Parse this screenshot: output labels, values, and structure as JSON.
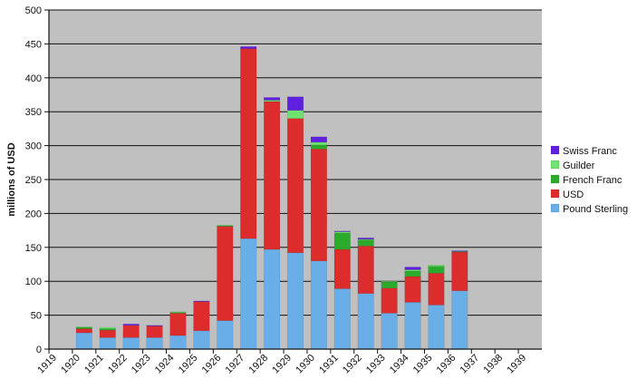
{
  "chart_data": {
    "type": "bar",
    "stacked": true,
    "title": "",
    "xlabel": "",
    "ylabel": "millions of USD",
    "ylim": [
      0,
      500
    ],
    "yticks": [
      0,
      50,
      100,
      150,
      200,
      250,
      300,
      350,
      400,
      450,
      500
    ],
    "grid": true,
    "legend_position": "right",
    "background_color": "#c0c0c0",
    "categories": [
      "1919",
      "1920",
      "1921",
      "1922",
      "1923",
      "1924",
      "1925",
      "1926",
      "1927",
      "1928",
      "1929",
      "1930",
      "1931",
      "1932",
      "1933",
      "1934",
      "1935",
      "1936",
      "1937",
      "1938",
      "1939"
    ],
    "series": [
      {
        "name": "Pound Sterling",
        "color": "#6aaee8",
        "values": [
          0,
          24,
          17,
          17,
          17,
          20,
          27,
          42,
          163,
          147,
          142,
          130,
          89,
          82,
          53,
          69,
          65,
          86,
          0,
          0,
          0
        ]
      },
      {
        "name": "USD",
        "color": "#dd2c2c",
        "values": [
          0,
          6,
          11,
          18,
          17,
          33,
          43,
          139,
          280,
          218,
          198,
          165,
          58,
          70,
          37,
          38,
          47,
          57,
          0,
          0,
          0
        ]
      },
      {
        "name": "French Franc",
        "color": "#2caa2c",
        "values": [
          0,
          2,
          2,
          0,
          0,
          1,
          0,
          1,
          0,
          0,
          0,
          6,
          24,
          9,
          9,
          8,
          10,
          1,
          0,
          0,
          0
        ]
      },
      {
        "name": "Guilder",
        "color": "#6fe26f",
        "values": [
          0,
          1,
          2,
          0,
          0,
          1,
          0,
          1,
          0,
          2,
          12,
          4,
          2,
          1,
          1,
          2,
          2,
          0,
          0,
          0,
          0
        ]
      },
      {
        "name": "Swiss Franc",
        "color": "#6020e0",
        "values": [
          0,
          0,
          0,
          2,
          1,
          0,
          1,
          0,
          3,
          4,
          20,
          8,
          1,
          2,
          0,
          4,
          0,
          1,
          0,
          0,
          0
        ]
      }
    ]
  }
}
